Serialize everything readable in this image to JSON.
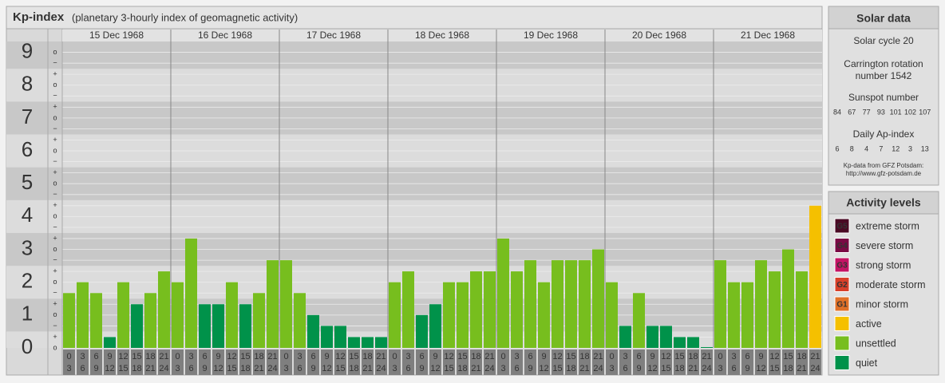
{
  "chart_data": {
    "type": "bar",
    "title": "Kp-index",
    "subtitle": "(planetary 3-hourly index of geomagnetic activity)",
    "days": [
      "15 Dec 1968",
      "16 Dec 1968",
      "17 Dec 1968",
      "18 Dec 1968",
      "19 Dec 1968",
      "20 Dec 1968",
      "21 Dec 1968"
    ],
    "hour_labels": [
      [
        "0",
        "3"
      ],
      [
        "3",
        "6"
      ],
      [
        "6",
        "9"
      ],
      [
        "9",
        "12"
      ],
      [
        "12",
        "15"
      ],
      [
        "15",
        "18"
      ],
      [
        "18",
        "21"
      ],
      [
        "21",
        "24"
      ]
    ],
    "values": [
      1.67,
      2,
      1.67,
      0.33,
      2,
      1.33,
      1.67,
      2.33,
      2,
      3.33,
      1.33,
      1.33,
      2,
      1.33,
      1.67,
      2.67,
      2.67,
      1.67,
      1,
      0.67,
      0.67,
      0.33,
      0.33,
      0.33,
      2,
      2.33,
      1,
      1.33,
      2,
      2,
      2.33,
      2.33,
      3.33,
      2.33,
      2.67,
      2,
      2.67,
      2.67,
      2.67,
      3,
      2,
      0.67,
      1.67,
      0.67,
      0.67,
      0.33,
      0.33,
      0,
      2.67,
      2,
      2,
      2.67,
      2.33,
      3,
      2.33,
      4.33
    ],
    "colors": [
      "#77be1e",
      "#77be1e",
      "#77be1e",
      "#00924a",
      "#77be1e",
      "#00924a",
      "#77be1e",
      "#77be1e",
      "#77be1e",
      "#77be1e",
      "#00924a",
      "#00924a",
      "#77be1e",
      "#00924a",
      "#77be1e",
      "#77be1e",
      "#77be1e",
      "#77be1e",
      "#00924a",
      "#00924a",
      "#00924a",
      "#00924a",
      "#00924a",
      "#00924a",
      "#77be1e",
      "#77be1e",
      "#00924a",
      "#00924a",
      "#77be1e",
      "#77be1e",
      "#77be1e",
      "#77be1e",
      "#77be1e",
      "#77be1e",
      "#77be1e",
      "#77be1e",
      "#77be1e",
      "#77be1e",
      "#77be1e",
      "#77be1e",
      "#77be1e",
      "#00924a",
      "#77be1e",
      "#00924a",
      "#00924a",
      "#00924a",
      "#00924a",
      "#00924a",
      "#77be1e",
      "#77be1e",
      "#77be1e",
      "#77be1e",
      "#77be1e",
      "#77be1e",
      "#77be1e",
      "#f5c000"
    ],
    "ylim": [
      0,
      9.33
    ],
    "yticks": [
      0,
      1,
      2,
      3,
      4,
      5,
      6,
      7,
      8,
      9
    ],
    "minor_ticks": [
      {
        "value": 9,
        "label": "o"
      },
      {
        "value": 8.67,
        "label": "−"
      },
      {
        "value": 8.33,
        "label": "+"
      },
      {
        "value": 8,
        "label": "o"
      },
      {
        "value": 7.67,
        "label": "−"
      },
      {
        "value": 7.33,
        "label": "+"
      },
      {
        "value": 7,
        "label": "o"
      },
      {
        "value": 6.67,
        "label": "−"
      },
      {
        "value": 6.33,
        "label": "+"
      },
      {
        "value": 6,
        "label": "o"
      },
      {
        "value": 5.67,
        "label": "−"
      },
      {
        "value": 5.33,
        "label": "+"
      },
      {
        "value": 5,
        "label": "o"
      },
      {
        "value": 4.67,
        "label": "−"
      },
      {
        "value": 4.33,
        "label": "+"
      },
      {
        "value": 4,
        "label": "o"
      },
      {
        "value": 3.67,
        "label": "−"
      },
      {
        "value": 3.33,
        "label": "+"
      },
      {
        "value": 3,
        "label": "o"
      },
      {
        "value": 2.67,
        "label": "−"
      },
      {
        "value": 2.33,
        "label": "+"
      },
      {
        "value": 2,
        "label": "o"
      },
      {
        "value": 1.67,
        "label": "−"
      },
      {
        "value": 1.33,
        "label": "+"
      },
      {
        "value": 1,
        "label": "o"
      },
      {
        "value": 0.67,
        "label": "−"
      },
      {
        "value": 0.33,
        "label": "+"
      },
      {
        "value": 0,
        "label": "o"
      }
    ],
    "grid": true
  },
  "solar_data": {
    "title": "Solar data",
    "cycle": "Solar cycle 20",
    "rotation": [
      "Carrington rotation",
      "number 1542"
    ],
    "sunspot_title": "Sunspot number",
    "sunspot": [
      "84",
      "67",
      "77",
      "93",
      "101",
      "102",
      "107"
    ],
    "ap_title": "Daily Ap-index",
    "ap": [
      "6",
      "8",
      "4",
      "7",
      "12",
      "3",
      "13"
    ],
    "source": [
      "Kp-data from GFZ Potsdam:",
      "http://www.gfz-potsdam.de"
    ]
  },
  "activity_levels": {
    "title": "Activity levels",
    "items": [
      {
        "badge": "G5",
        "label": "extreme storm",
        "color": "#4a0a24"
      },
      {
        "badge": "G4",
        "label": "severe storm",
        "color": "#7a0a44"
      },
      {
        "badge": "G3",
        "label": "strong storm",
        "color": "#c41464"
      },
      {
        "badge": "G2",
        "label": "moderate storm",
        "color": "#d8402a"
      },
      {
        "badge": "G1",
        "label": "minor storm",
        "color": "#e07028"
      },
      {
        "badge": null,
        "label": "active",
        "color": "#f5c000"
      },
      {
        "badge": null,
        "label": "unsettled",
        "color": "#77be1e"
      },
      {
        "badge": null,
        "label": "quiet",
        "color": "#00924a"
      }
    ]
  }
}
